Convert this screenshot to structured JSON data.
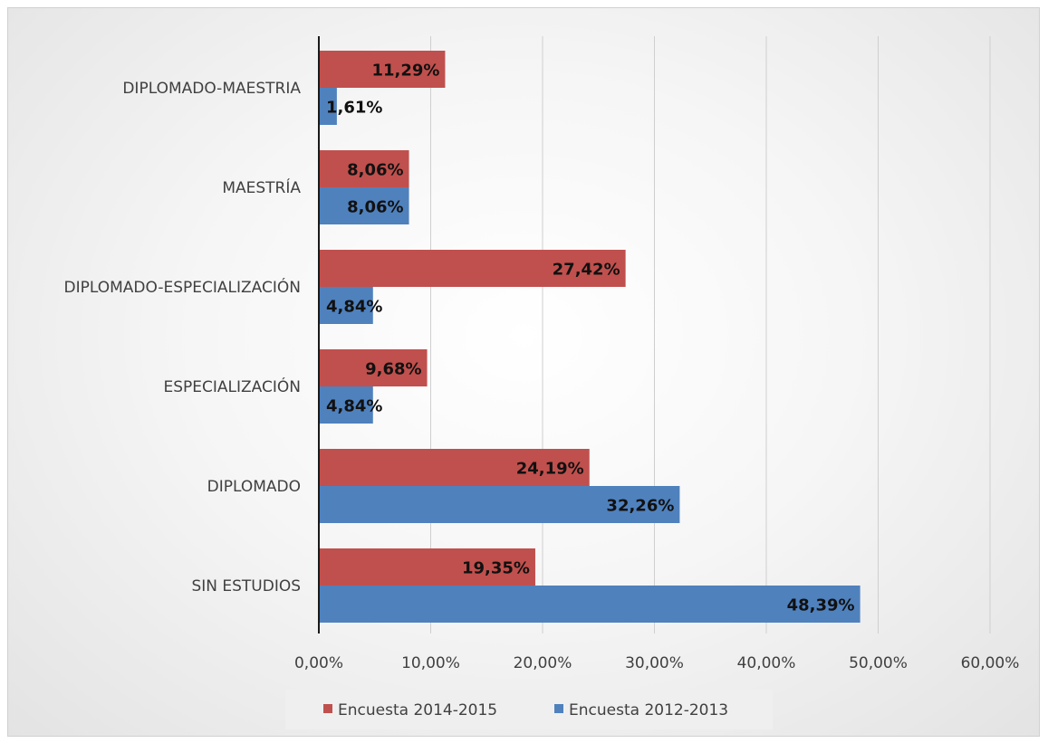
{
  "chart_data": {
    "type": "bar",
    "orientation": "horizontal",
    "categories": [
      "SIN ESTUDIOS",
      "DIPLOMADO",
      "ESPECIALIZACIÓN",
      "DIPLOMADO-ESPECIALIZACIÓN",
      "MAESTRÍA",
      "DIPLOMADO-MAESTRIA"
    ],
    "series": [
      {
        "name": "Encuesta 2014-2015",
        "color": "#c0504d",
        "values": [
          19.35,
          24.19,
          9.68,
          27.42,
          8.06,
          11.29
        ],
        "labels": [
          "19,35%",
          "24,19%",
          "9,68%",
          "27,42%",
          "8,06%",
          "11,29%"
        ]
      },
      {
        "name": "Encuesta 2012-2013",
        "color": "#4f81bd",
        "values": [
          48.39,
          32.26,
          4.84,
          4.84,
          8.06,
          1.61
        ],
        "labels": [
          "48,39%",
          "32,26%",
          "4,84%",
          "4,84%",
          "8,06%",
          "1,61%"
        ]
      }
    ],
    "xlim": [
      0,
      60
    ],
    "xticks": [
      "0,00%",
      "10,00%",
      "20,00%",
      "30,00%",
      "40,00%",
      "50,00%",
      "60,00%"
    ],
    "grid": true,
    "legend_position": "bottom",
    "title": "",
    "xlabel": "",
    "ylabel": ""
  }
}
